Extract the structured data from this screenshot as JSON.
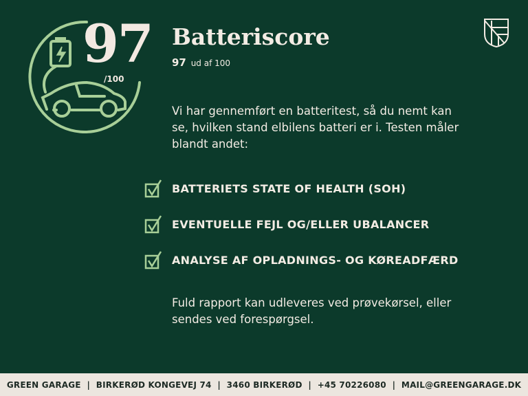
{
  "colors": {
    "background": "#0c3a2b",
    "accent": "#a8cf98",
    "footer_bg": "#ece6df"
  },
  "badge": {
    "score": "97",
    "max": "/100",
    "icons": [
      "battery-charging-icon",
      "electric-car-icon"
    ]
  },
  "header": {
    "title": "Batteriscore",
    "score_value": "97",
    "score_suffix": "ud af 100"
  },
  "intro": "Vi har gennemført en batteritest, så du nemt kan se, hvilken stand elbilens batteri er i. Testen måler blandt andet:",
  "checklist": [
    {
      "label": "BATTERIETS STATE OF HEALTH (SOH)",
      "checked": true
    },
    {
      "label": "EVENTUELLE FEJL OG/ELLER UBALANCER",
      "checked": true
    },
    {
      "label": "ANALYSE AF OPLADNINGS- OG KØREADFÆRD",
      "checked": true
    }
  ],
  "outro": "Fuld rapport kan udleveres ved prøvekørsel, eller sendes ved forespørgsel.",
  "logo": {
    "icon": "shield-logo-icon"
  },
  "footer": {
    "text": "GREEN GARAGE  |  BIRKERØD KONGEVEJ 74  |  3460 BIRKERØD  |  +45 70226080  |  MAIL@GREENGARAGE.DK"
  }
}
